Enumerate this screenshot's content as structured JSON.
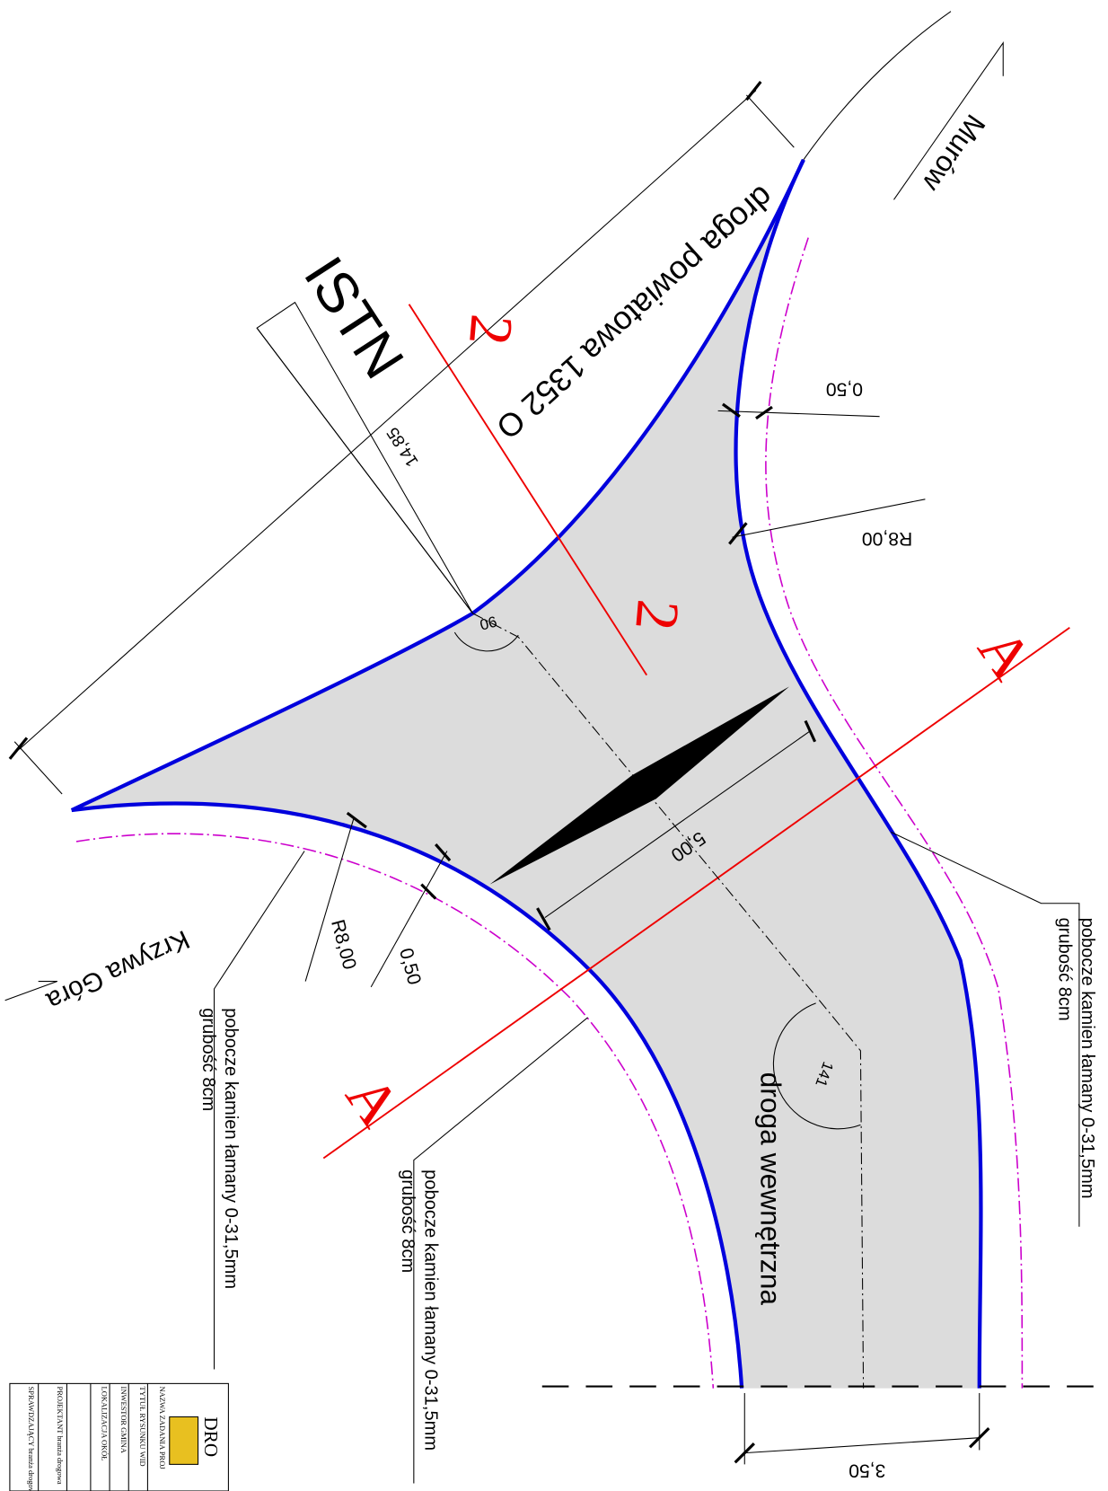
{
  "drawing": {
    "road_main": "droga powiatowa 1352 O",
    "istn": "ISTN",
    "dim_14_85": "14,85",
    "section_2_top": "2",
    "section_2_bottom": "2",
    "offset_top": "0,50",
    "radius_top": "R8,00",
    "angle_90": "90",
    "section_a_right": "A",
    "section_a_left": "A",
    "dim_5_00": "5,00",
    "direction_right": "Murów",
    "direction_left": "Krzywa Góra",
    "radius_left": "R8,00",
    "offset_left": "0,50",
    "angle_141": "141",
    "road_internal": "droga wewnętrzna",
    "width_3_50": "3,50",
    "shoulder_labels": [
      {
        "line1": "pobocze kamien łamany 0-31,5mm",
        "line2": "grubość 8cm"
      },
      {
        "line1": "pobocze kamien łamany 0-31,5mm",
        "line2": "grubość 8cm"
      },
      {
        "line1": "pobocze kamien łamany 0-31,5mm",
        "line2": "grubość 8cm"
      }
    ]
  },
  "title_block": {
    "company": "DRO",
    "rows": [
      "NAZWA ZADANIA  PROJ",
      "TYTUŁ RYSUNKU  WID",
      "INWESTOR  GMINA",
      "LOKALIZACJA  OKÓŁ",
      "PROJEKTANT branża drogowa",
      "SPRAWDZAJĄCY branża drogowa"
    ]
  }
}
